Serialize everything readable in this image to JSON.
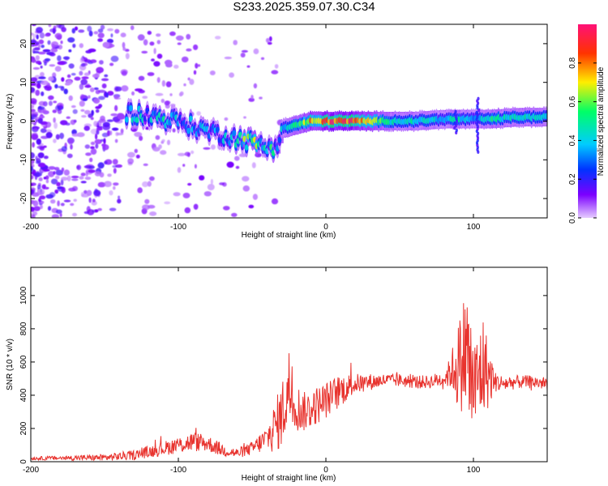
{
  "title": "S233.2025.359.07.30.C34",
  "chart_data": [
    {
      "type": "heatmap",
      "name": "spectrogram",
      "xlabel": "Height of straight line (km)",
      "ylabel": "Frequency (Hz)",
      "xlim": [
        -200,
        150
      ],
      "ylim": [
        -25,
        25
      ],
      "xticks": [
        -200,
        -100,
        0,
        100
      ],
      "yticks": [
        -20,
        -10,
        0,
        10,
        20
      ],
      "colorbar": {
        "label": "Normalized spectral amplitude",
        "range": [
          0,
          1
        ],
        "ticks": [
          0.0,
          0.2,
          0.4,
          0.6,
          0.8
        ],
        "tick_labels": [
          "0.0",
          "0.2",
          "0.4",
          "0.6",
          "0.8"
        ],
        "colors": [
          "#e6ccff",
          "#7b00ff",
          "#0033ff",
          "#00ccff",
          "#00ff66",
          "#ffee00",
          "#ff3300",
          "#ff1177"
        ]
      },
      "ridge": {
        "x": [
          -130,
          -115,
          -100,
          -85,
          -75,
          -65,
          -55,
          -45,
          -38,
          -33,
          -30,
          -20,
          -10,
          0,
          10,
          20,
          40,
          60,
          80,
          90,
          100,
          110,
          130,
          150
        ],
        "freq": [
          2,
          1,
          0,
          -2,
          -3,
          -4,
          -5,
          -6,
          -7,
          -6,
          -2,
          -1,
          0,
          0,
          0,
          0,
          0,
          0,
          0.5,
          0.5,
          0.5,
          0.5,
          1,
          1
        ],
        "amplitude": [
          0.35,
          0.4,
          0.4,
          0.35,
          0.3,
          0.35,
          0.5,
          0.55,
          0.5,
          0.3,
          0.4,
          0.5,
          0.75,
          0.85,
          0.95,
          0.85,
          0.5,
          0.45,
          0.4,
          0.45,
          0.35,
          0.5,
          0.45,
          0.45
        ]
      }
    },
    {
      "type": "line",
      "name": "snr",
      "xlabel": "Height of straight line (km)",
      "ylabel": "SNR (10 * v/v)",
      "xlim": [
        -200,
        150
      ],
      "ylim": [
        0,
        1170
      ],
      "xticks": [
        -200,
        -100,
        0,
        100
      ],
      "yticks": [
        0,
        200,
        400,
        600,
        800,
        1000
      ],
      "color": "#e8332e",
      "envelope": {
        "x": [
          -200,
          -150,
          -130,
          -115,
          -100,
          -90,
          -80,
          -70,
          -60,
          -50,
          -40,
          -35,
          -30,
          -25,
          -20,
          -15,
          -10,
          0,
          10,
          20,
          30,
          40,
          50,
          60,
          70,
          80,
          85,
          88,
          92,
          95,
          98,
          102,
          106,
          110,
          115,
          120,
          130,
          140,
          150
        ],
        "y": [
          20,
          25,
          40,
          70,
          100,
          120,
          110,
          70,
          50,
          80,
          140,
          200,
          280,
          450,
          330,
          300,
          320,
          370,
          430,
          470,
          480,
          490,
          490,
          480,
          480,
          500,
          540,
          580,
          600,
          700,
          500,
          450,
          580,
          520,
          480,
          470,
          480,
          480,
          470
        ],
        "noise": [
          10,
          20,
          30,
          40,
          50,
          60,
          50,
          40,
          30,
          40,
          80,
          150,
          200,
          250,
          150,
          120,
          120,
          110,
          100,
          60,
          50,
          40,
          40,
          40,
          40,
          50,
          100,
          250,
          300,
          450,
          400,
          300,
          350,
          200,
          60,
          50,
          40,
          40,
          40
        ]
      }
    }
  ]
}
